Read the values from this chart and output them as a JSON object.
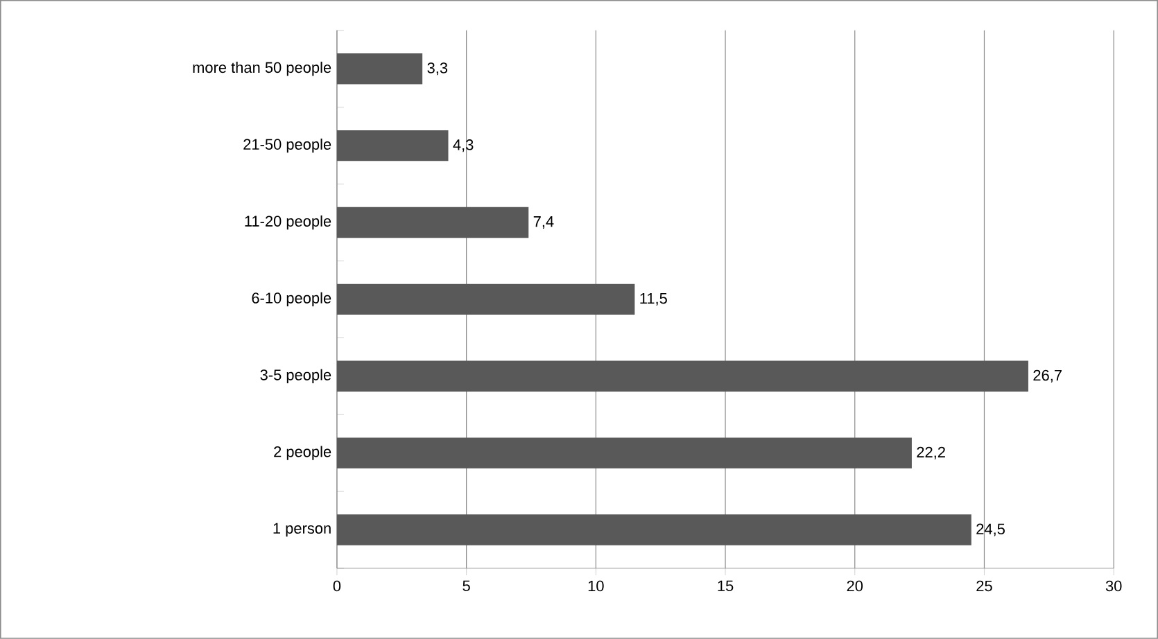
{
  "chart_data": {
    "type": "bar",
    "orientation": "horizontal",
    "categories": [
      "more than 50 people",
      "21-50 people",
      "11-20 people",
      "6-10 people",
      "3-5 people",
      "2 people",
      "1 person"
    ],
    "values": [
      3.3,
      4.3,
      7.4,
      11.5,
      26.7,
      22.2,
      24.5
    ],
    "value_labels": [
      "3,3",
      "4,3",
      "7,4",
      "11,5",
      "26,7",
      "22,2",
      "24,5"
    ],
    "color": "#595959",
    "xlim": [
      0,
      30
    ],
    "xticks": [
      0,
      5,
      10,
      15,
      20,
      25,
      30
    ],
    "grid": "x"
  }
}
